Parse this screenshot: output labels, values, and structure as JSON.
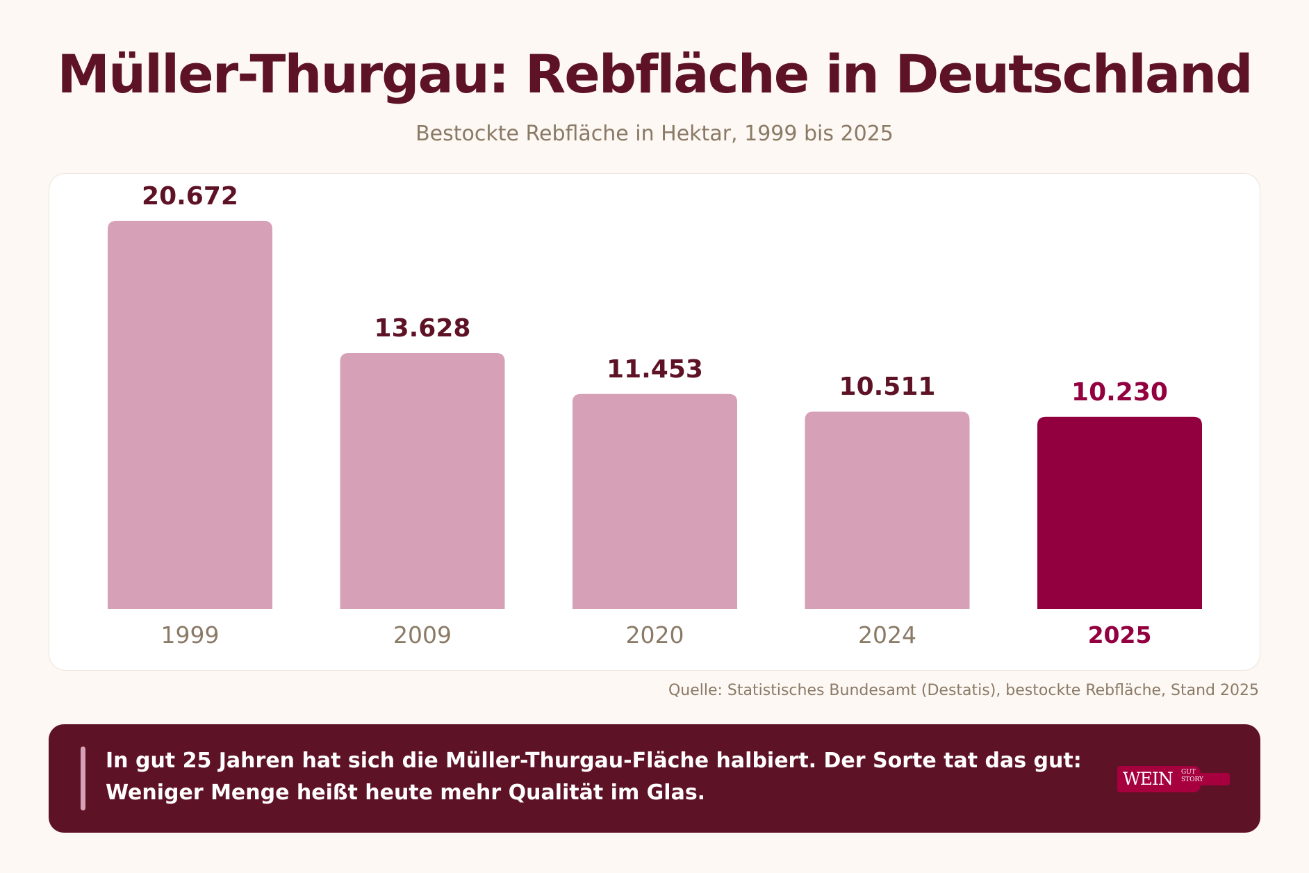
{
  "header": {
    "title": "Müller-Thurgau: Rebfläche in Deutschland",
    "subtitle": "Bestockte Rebfläche in Hektar, 1999 bis 2025"
  },
  "chart_data": {
    "type": "bar",
    "title": "Müller-Thurgau: Rebfläche in Deutschland",
    "subtitle": "Bestockte Rebfläche in Hektar, 1999 bis 2025",
    "categories": [
      "1999",
      "2009",
      "2020",
      "2024",
      "2025"
    ],
    "values": [
      20672,
      13628,
      11453,
      10511,
      10230
    ],
    "value_labels": [
      "20.672",
      "13.628",
      "11.453",
      "10.511",
      "10.230"
    ],
    "highlight_index": 4,
    "ylim": [
      0,
      22000
    ],
    "grid": false,
    "xlabel": "",
    "ylabel": "",
    "colors": {
      "bar": "#d6a0b6",
      "bar_highlight": "#93003f",
      "value_label": "#5e1226",
      "value_label_highlight": "#93003f",
      "category_label": "#8a7a66",
      "category_label_highlight": "#93003f"
    }
  },
  "source": "Quelle: Statistisches Bundesamt (Destatis), bestockte Rebfläche, Stand 2025",
  "note": {
    "text": "In gut 25 Jahren hat sich die Müller-Thurgau-Fläche halbiert. Der Sorte tat das gut: Weniger Menge heißt heute mehr Qualität im Glas."
  },
  "logo": {
    "main": "WEIN",
    "top": "GUT",
    "bottom": "STORY"
  },
  "colors": {
    "background": "#fdf8f4",
    "title": "#5e1226",
    "note_background": "#5e1226",
    "logo": "#a6003f"
  }
}
